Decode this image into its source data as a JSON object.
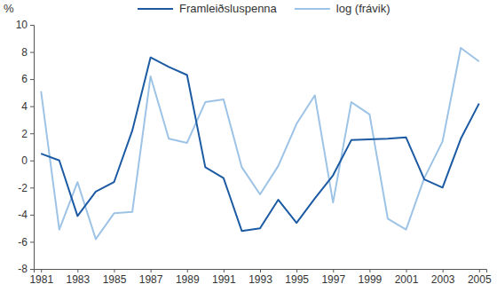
{
  "chart_data": {
    "type": "line",
    "y_label": "%",
    "x": [
      1981,
      1982,
      1983,
      1984,
      1985,
      1986,
      1987,
      1988,
      1989,
      1990,
      1991,
      1992,
      1993,
      1994,
      1995,
      1996,
      1997,
      1998,
      1999,
      2000,
      2001,
      2002,
      2003,
      2004,
      2005
    ],
    "series": [
      {
        "name": "Framleiðsluspenna",
        "color": "#1c5ba3",
        "values": [
          0.5,
          0.0,
          -4.1,
          -2.3,
          -1.6,
          2.2,
          7.6,
          6.9,
          6.3,
          -0.5,
          -1.3,
          -5.2,
          -5.0,
          -2.9,
          -4.6,
          -2.8,
          -1.1,
          1.5,
          1.55,
          1.6,
          1.7,
          -1.4,
          -2.0,
          1.6,
          4.2
        ]
      },
      {
        "name": "log (frávik)",
        "color": "#9dc3e6",
        "values": [
          5.1,
          -5.1,
          -1.6,
          -5.8,
          -3.9,
          -3.8,
          6.2,
          1.6,
          1.3,
          4.3,
          4.5,
          -0.5,
          -2.5,
          -0.4,
          2.7,
          4.8,
          -3.1,
          4.3,
          3.4,
          -4.3,
          -5.1,
          -1.3,
          1.4,
          8.3,
          7.3
        ]
      }
    ],
    "xlim": [
      1980.6,
      2005.4
    ],
    "xticks": [
      1981,
      1983,
      1985,
      1987,
      1989,
      1991,
      1993,
      1995,
      1997,
      1999,
      2001,
      2003,
      2005
    ],
    "ylim": [
      -8,
      10
    ],
    "yticks": [
      -8,
      -6,
      -4,
      -2,
      0,
      2,
      4,
      6,
      8,
      10
    ],
    "grid": false,
    "legend": "top"
  }
}
